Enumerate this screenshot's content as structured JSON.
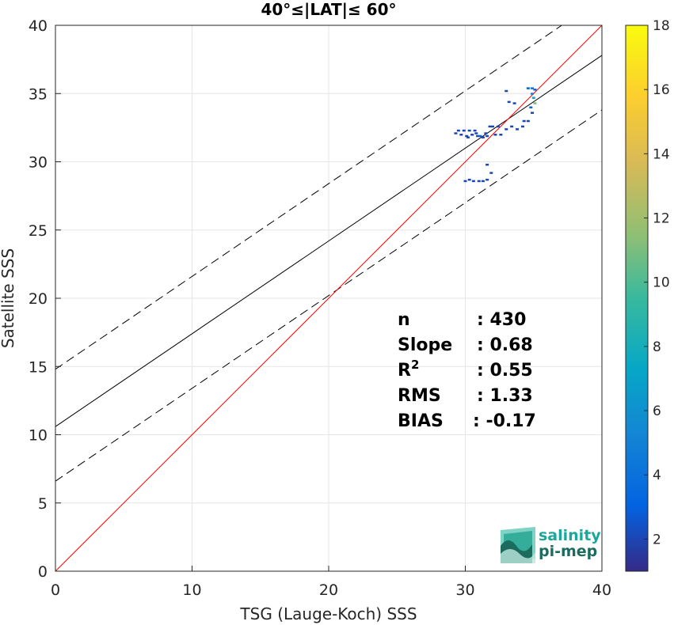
{
  "chart_data": {
    "type": "scatter",
    "title": "40°≤|LAT|≤ 60°",
    "xlabel": "TSG (Lauge-Koch) SSS",
    "ylabel": "Satellite SSS",
    "xlim": [
      0,
      40
    ],
    "ylim": [
      0,
      40
    ],
    "xticks": [
      "0",
      "10",
      "20",
      "30",
      "40"
    ],
    "yticks": [
      "0",
      "5",
      "10",
      "15",
      "20",
      "25",
      "30",
      "35",
      "40"
    ],
    "grid": true,
    "colorbar": {
      "range": [
        1,
        18
      ],
      "ticks": [
        "2",
        "4",
        "6",
        "8",
        "10",
        "12",
        "14",
        "16",
        "18"
      ],
      "colormap": "parula"
    },
    "lines": {
      "identity": {
        "slope": 1,
        "intercept": 0,
        "color": "#ff0000"
      },
      "fit": {
        "slope": 0.68,
        "intercept": 10.6,
        "color": "#000000",
        "style": "solid"
      },
      "upper_band": {
        "slope": 0.68,
        "intercept": 14.8,
        "color": "#000000",
        "style": "dashed"
      },
      "lower_band": {
        "slope": 0.68,
        "intercept": 6.6,
        "color": "#000000",
        "style": "dashed"
      }
    },
    "points": [
      [
        29.3,
        32.1,
        2
      ],
      [
        29.5,
        32.3,
        2
      ],
      [
        29.7,
        32.0,
        2
      ],
      [
        29.9,
        32.3,
        2
      ],
      [
        30.1,
        31.9,
        2
      ],
      [
        30.3,
        32.3,
        2
      ],
      [
        30.5,
        32.0,
        2
      ],
      [
        30.7,
        32.3,
        2
      ],
      [
        30.9,
        31.9,
        2
      ],
      [
        31.1,
        31.9,
        3
      ],
      [
        31.3,
        31.8,
        2
      ],
      [
        31.5,
        32.1,
        2
      ],
      [
        31.6,
        31.9,
        2
      ],
      [
        31.8,
        32.6,
        2
      ],
      [
        32.0,
        32.6,
        2
      ],
      [
        32.2,
        32.0,
        2
      ],
      [
        32.4,
        32.6,
        2
      ],
      [
        32.6,
        32.0,
        2
      ],
      [
        33.0,
        32.4,
        2
      ],
      [
        33.4,
        32.6,
        2
      ],
      [
        30.0,
        28.6,
        2
      ],
      [
        30.3,
        28.7,
        2
      ],
      [
        30.6,
        28.6,
        2
      ],
      [
        31.0,
        28.6,
        2
      ],
      [
        31.3,
        28.6,
        2
      ],
      [
        31.6,
        28.7,
        2
      ],
      [
        31.9,
        29.2,
        2
      ],
      [
        31.6,
        29.8,
        2
      ],
      [
        33.0,
        35.2,
        2
      ],
      [
        33.2,
        34.4,
        2
      ],
      [
        33.6,
        34.3,
        2
      ],
      [
        34.6,
        35.4,
        3
      ],
      [
        34.9,
        35.4,
        4
      ],
      [
        35.1,
        35.3,
        3
      ],
      [
        34.9,
        35.0,
        5
      ],
      [
        35.0,
        34.7,
        7
      ],
      [
        35.1,
        34.3,
        11
      ],
      [
        34.8,
        34.0,
        3
      ],
      [
        34.9,
        33.6,
        2
      ],
      [
        34.6,
        33.0,
        2
      ],
      [
        34.3,
        33.0,
        2
      ],
      [
        33.8,
        32.4,
        2
      ],
      [
        34.2,
        32.6,
        2
      ],
      [
        30.2,
        31.8,
        2
      ],
      [
        30.8,
        32.1,
        2
      ]
    ],
    "stats": [
      {
        "label": "n",
        "value": ": 430"
      },
      {
        "label": "Slope",
        "value": ": 0.68"
      },
      {
        "label": "R",
        "sup": "2",
        "value": ": 0.55"
      },
      {
        "label": "RMS",
        "value": ": 1.33"
      },
      {
        "label": "BIAS",
        "value": ": -0.17"
      }
    ]
  },
  "logo": {
    "line1": "salinity",
    "line2": "pi-mep",
    "color1": "#1aa89b",
    "color2": "#1b6b5f"
  }
}
